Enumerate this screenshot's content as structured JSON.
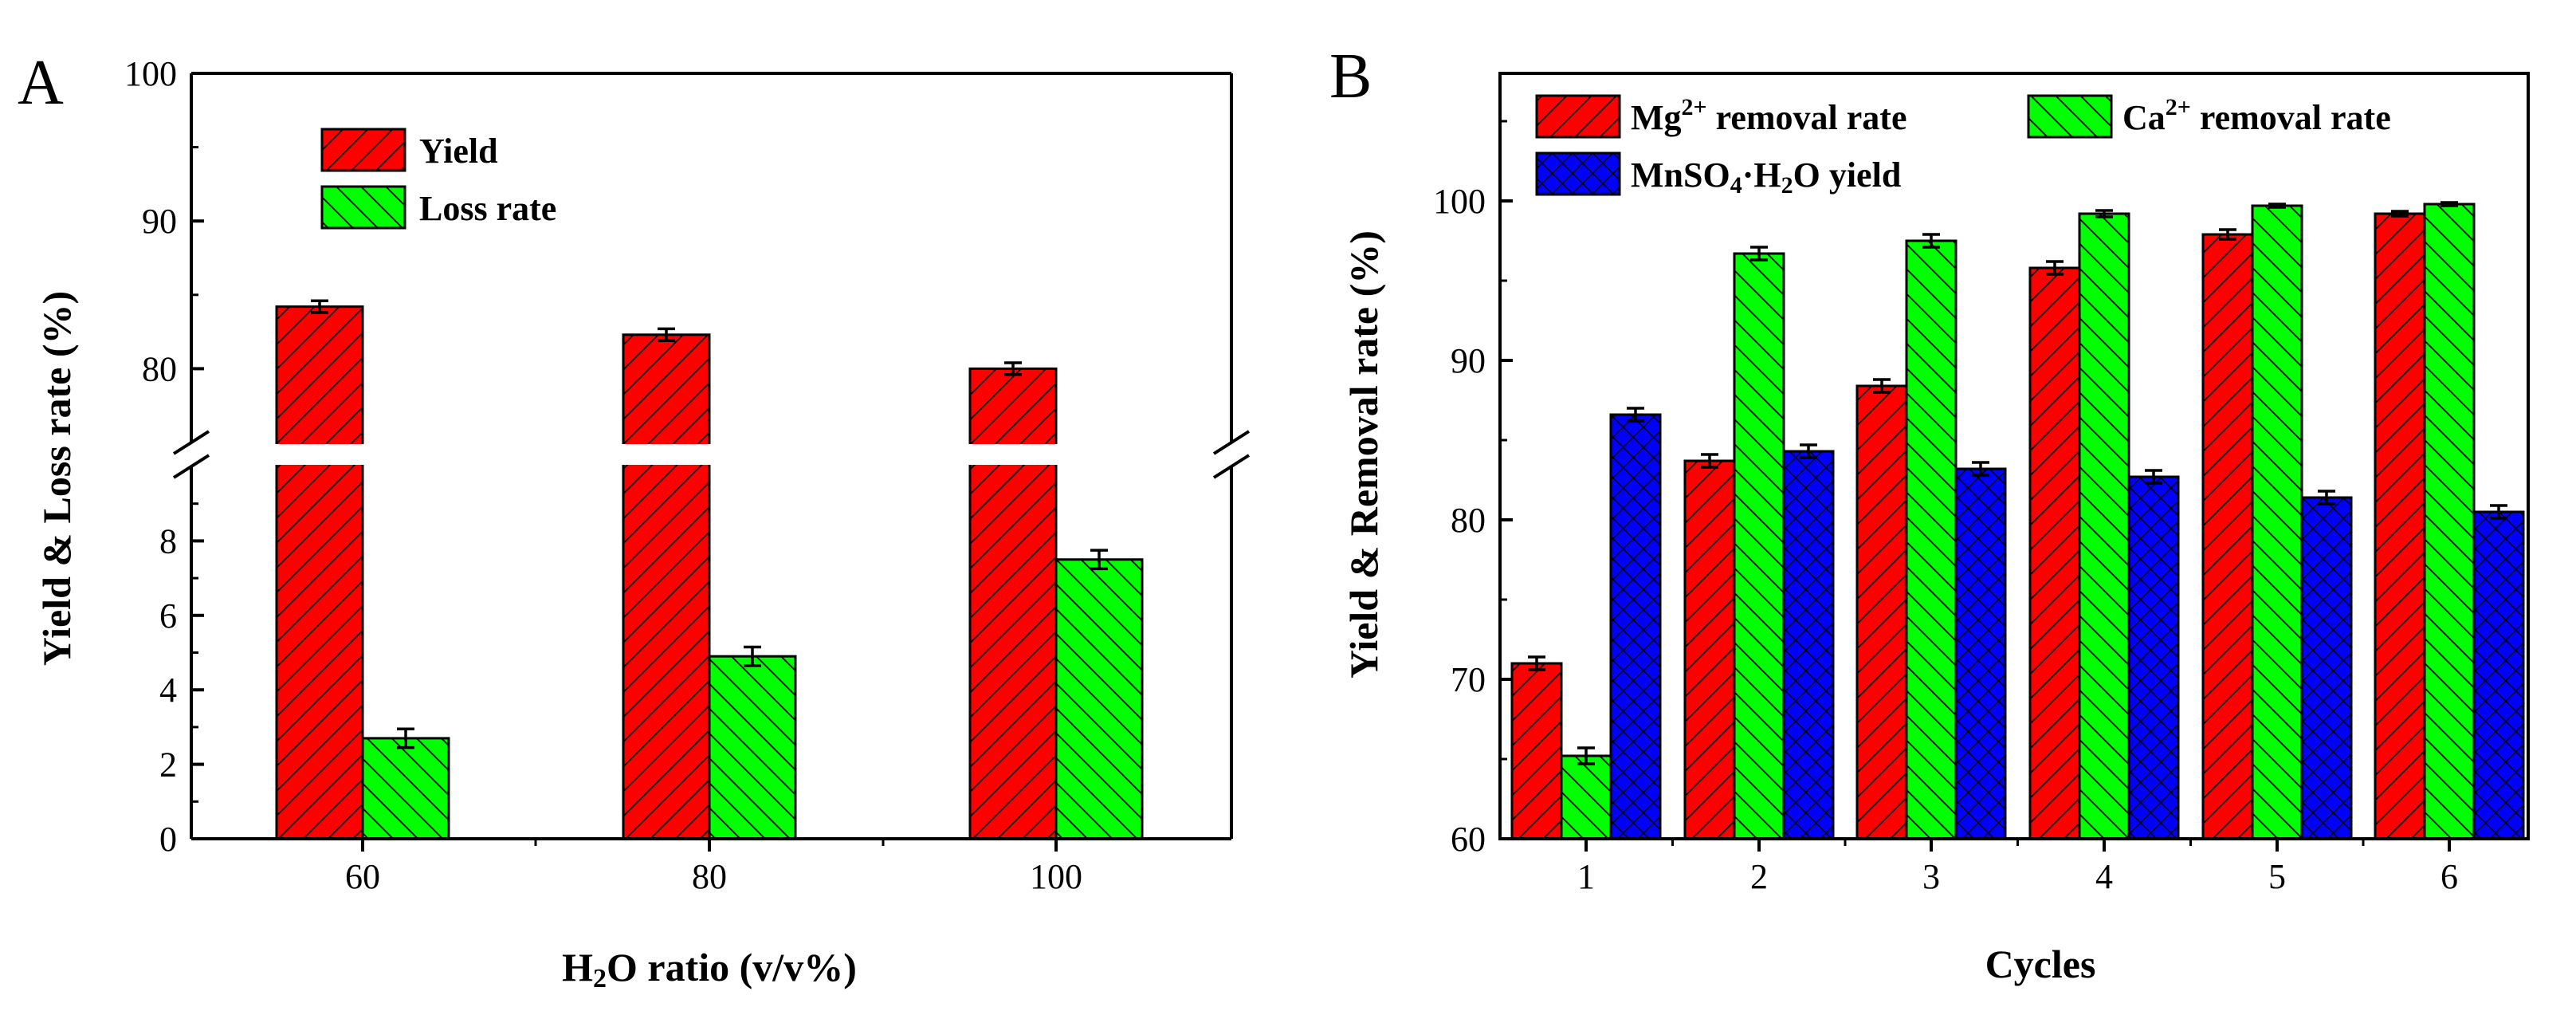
{
  "chart_data": [
    {
      "panel": "A",
      "type": "bar",
      "categories": [
        "60",
        "80",
        "100"
      ],
      "series": [
        {
          "name": "Yield",
          "values": [
            84.2,
            82.3,
            80.0
          ],
          "errors": [
            0.4,
            0.4,
            0.4
          ],
          "color": "#ff0000",
          "hatch": "forward"
        },
        {
          "name": "Loss rate",
          "values": [
            2.7,
            4.9,
            7.5
          ],
          "errors": [
            0.25,
            0.25,
            0.25
          ],
          "color": "#00ff00",
          "hatch": "backward"
        }
      ],
      "xlabel_parts": [
        "H",
        "2",
        "O ratio (v/v%)"
      ],
      "ylabel": "Yield & Loss rate (%)",
      "axis_break": {
        "lower_range": [
          0,
          10
        ],
        "upper_range": [
          75,
          100
        ]
      },
      "lower_ticks": [
        0,
        2,
        4,
        6,
        8
      ],
      "upper_ticks": [
        80,
        90,
        100
      ],
      "legend_position": "top-left"
    },
    {
      "panel": "B",
      "type": "bar",
      "categories": [
        "1",
        "2",
        "3",
        "4",
        "5",
        "6"
      ],
      "series": [
        {
          "name": "Mg2+ removal rate",
          "label_parts": [
            "Mg",
            "2+",
            " removal rate"
          ],
          "values": [
            71.0,
            83.7,
            88.4,
            95.8,
            97.9,
            99.2
          ],
          "errors": [
            0.4,
            0.4,
            0.4,
            0.4,
            0.3,
            0.15
          ],
          "color": "#ff0000",
          "hatch": "forward"
        },
        {
          "name": "Ca2+ removal rate",
          "label_parts": [
            "Ca",
            "2+",
            " removal rate"
          ],
          "values": [
            65.2,
            96.7,
            97.5,
            99.2,
            99.7,
            99.8
          ],
          "errors": [
            0.5,
            0.4,
            0.4,
            0.2,
            0.1,
            0.1
          ],
          "color": "#00ff00",
          "hatch": "backward"
        },
        {
          "name": "MnSO4·H2O yield",
          "label_parts": [
            "MnSO",
            "4",
            "·H",
            "2",
            "O yield"
          ],
          "values": [
            86.6,
            84.3,
            83.2,
            82.7,
            81.4,
            80.5
          ],
          "errors": [
            0.4,
            0.4,
            0.4,
            0.4,
            0.4,
            0.4
          ],
          "color": "#0000ff",
          "hatch": "cross"
        }
      ],
      "xlabel": "Cycles",
      "ylabel": "Yield & Removal rate (%)",
      "ylim": [
        60,
        108
      ],
      "yticks": [
        60,
        70,
        80,
        90,
        100
      ],
      "legend_position": "top-left"
    }
  ]
}
